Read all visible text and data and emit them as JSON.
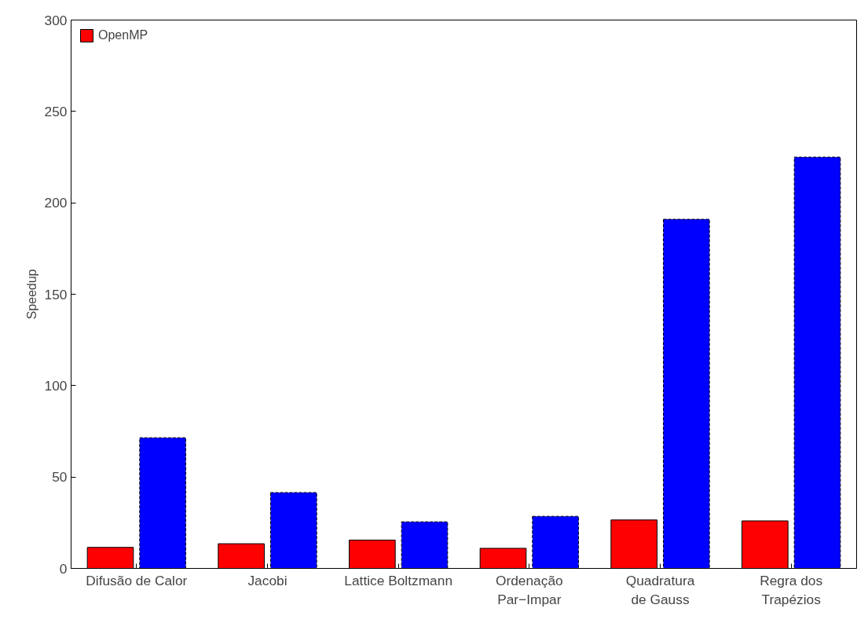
{
  "chart_data": {
    "type": "bar",
    "ylabel": "Speedup",
    "categories": [
      "Difusão de Calor",
      "Jacobi",
      "Lattice Boltzmann",
      "Ordenação\nPar−Impar",
      "Quadratura\nde Gauss",
      "Regra dos\nTrapézios"
    ],
    "series": [
      {
        "name": "OpenMP",
        "color": "#ff0000",
        "values": [
          11.5,
          13.5,
          15.5,
          11,
          26.5,
          26
        ]
      },
      {
        "color": "#0000ff",
        "values": [
          71.5,
          41.5,
          25.5,
          28.5,
          191,
          225
        ]
      }
    ],
    "ylim": [
      0,
      300
    ],
    "yticks": [
      0,
      50,
      100,
      150,
      200,
      250,
      300
    ],
    "grid": false,
    "legend": "top left"
  }
}
